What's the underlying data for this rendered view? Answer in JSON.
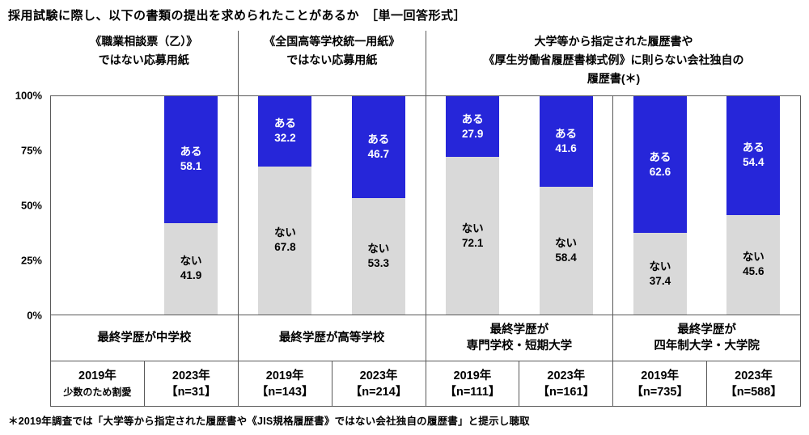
{
  "title": "採用試験に際し、以下の書類の提出を求められたことがあるか　［単一回答形式］",
  "footnote": "＊2019年調査では「大学等から指定された履歴書や《JIS規格履歴書》ではない会社独自の履歴書」と提示し聴取",
  "colors": {
    "aru_blue": "#2626D9",
    "nai_gray": "#D9D9D9",
    "line": "#595959"
  },
  "chart_data": {
    "type": "bar",
    "stacked": true,
    "orientation": "vertical",
    "grid": false,
    "ylim": [
      0,
      100
    ],
    "y_ticks": [
      "100%",
      "75%",
      "50%",
      "25%",
      "0%"
    ],
    "legend": [
      "ある",
      "ない"
    ],
    "group_headers": [
      {
        "panels": 1,
        "lines": [
          "《職業相談票（乙）》",
          "ではない応募用紙"
        ]
      },
      {
        "panels": 1,
        "lines": [
          "《全国高等学校統一用紙》",
          "ではない応募用紙"
        ]
      },
      {
        "panels": 2,
        "lines": [
          "大学等から指定された履歴書や",
          "《厚生労働省履歴書様式例》に則らない会社独自の",
          "履歴書(＊)"
        ]
      }
    ],
    "panels": [
      {
        "education": [
          "最終学歴が中学校"
        ],
        "bars": [
          {
            "year": "2019年",
            "sub": "少数のため割愛",
            "omitted": true,
            "aru": null,
            "nai": null
          },
          {
            "year": "2023年",
            "sub": "【n=31】",
            "omitted": false,
            "aru": 58.1,
            "nai": 41.9
          }
        ]
      },
      {
        "education": [
          "最終学歴が高等学校"
        ],
        "bars": [
          {
            "year": "2019年",
            "sub": "【n=143】",
            "omitted": false,
            "aru": 32.2,
            "nai": 67.8
          },
          {
            "year": "2023年",
            "sub": "【n=214】",
            "omitted": false,
            "aru": 46.7,
            "nai": 53.3
          }
        ]
      },
      {
        "education": [
          "最終学歴が",
          "専門学校・短期大学"
        ],
        "bars": [
          {
            "year": "2019年",
            "sub": "【n=111】",
            "omitted": false,
            "aru": 27.9,
            "nai": 72.1
          },
          {
            "year": "2023年",
            "sub": "【n=161】",
            "omitted": false,
            "aru": 41.6,
            "nai": 58.4
          }
        ]
      },
      {
        "education": [
          "最終学歴が",
          "四年制大学・大学院"
        ],
        "bars": [
          {
            "year": "2019年",
            "sub": "【n=735】",
            "omitted": false,
            "aru": 62.6,
            "nai": 37.4
          },
          {
            "year": "2023年",
            "sub": "【n=588】",
            "omitted": false,
            "aru": 54.4,
            "nai": 45.6
          }
        ]
      }
    ]
  }
}
